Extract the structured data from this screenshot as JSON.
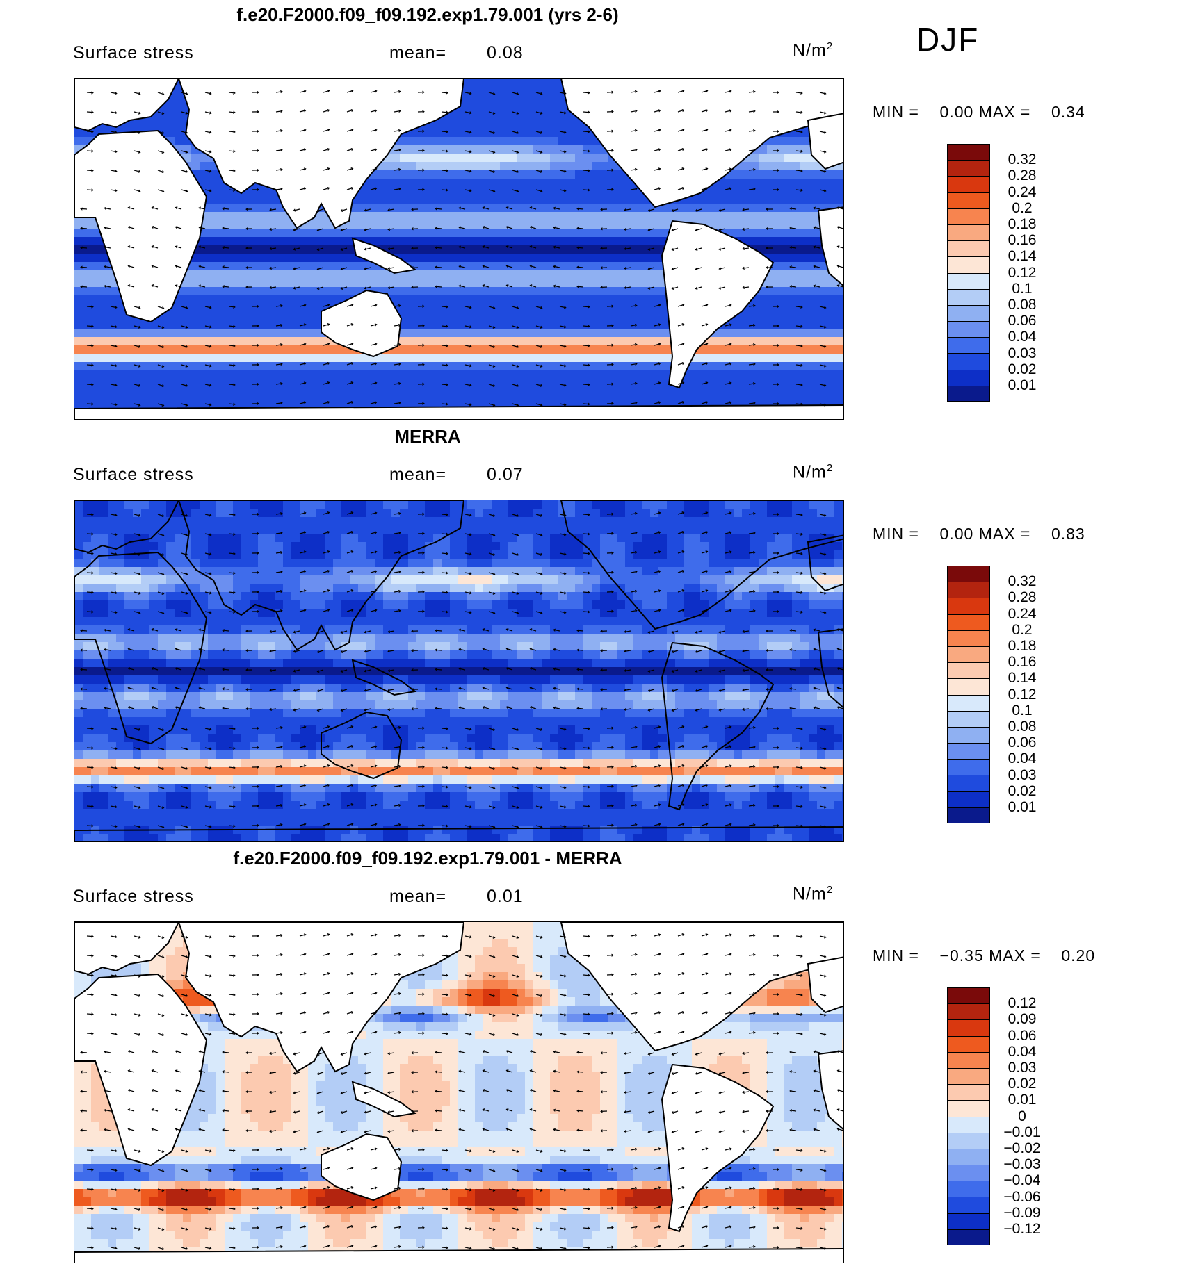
{
  "season": "DJF",
  "panels": [
    {
      "title": "f.e20.F2000.f09_f09.192.exp1.79.001 (yrs 2-6)",
      "variable": "Surface stress",
      "mean_label": "mean=",
      "mean_value": "0.08",
      "units_base": "N/m",
      "units_exp": "2",
      "min_label": "MIN =",
      "min_value": "0.00",
      "max_label": "MAX =",
      "max_value": "0.34",
      "colorbar": {
        "labels": [
          "0.32",
          "0.28",
          "0.24",
          "0.2",
          "0.18",
          "0.16",
          "0.14",
          "0.12",
          "0.1",
          "0.08",
          "0.06",
          "0.04",
          "0.03",
          "0.02",
          "0.01"
        ],
        "colors": [
          "#7a0a0a",
          "#b3240f",
          "#d9380f",
          "#ee5a1f",
          "#f7844f",
          "#f9a980",
          "#fccab0",
          "#fde6d6",
          "#d8e9fb",
          "#b3cdf6",
          "#8fb0f2",
          "#6b8ff0",
          "#3f6ceb",
          "#1f4bde",
          "#0d2fc7",
          "#0a1a8c"
        ]
      },
      "field": "model"
    },
    {
      "title": "MERRA",
      "variable": "Surface stress",
      "mean_label": "mean=",
      "mean_value": "0.07",
      "units_base": "N/m",
      "units_exp": "2",
      "min_label": "MIN =",
      "min_value": "0.00",
      "max_label": "MAX =",
      "max_value": "0.83",
      "colorbar": {
        "labels": [
          "0.32",
          "0.28",
          "0.24",
          "0.2",
          "0.18",
          "0.16",
          "0.14",
          "0.12",
          "0.1",
          "0.08",
          "0.06",
          "0.04",
          "0.03",
          "0.02",
          "0.01"
        ],
        "colors": [
          "#7a0a0a",
          "#b3240f",
          "#d9380f",
          "#ee5a1f",
          "#f7844f",
          "#f9a980",
          "#fccab0",
          "#fde6d6",
          "#d8e9fb",
          "#b3cdf6",
          "#8fb0f2",
          "#6b8ff0",
          "#3f6ceb",
          "#1f4bde",
          "#0d2fc7",
          "#0a1a8c"
        ]
      },
      "field": "obs"
    },
    {
      "title": "f.e20.F2000.f09_f09.192.exp1.79.001 - MERRA",
      "variable": "Surface stress",
      "mean_label": "mean=",
      "mean_value": "0.01",
      "units_base": "N/m",
      "units_exp": "2",
      "min_label": "MIN =",
      "min_value": "−0.35",
      "max_label": "MAX =",
      "max_value": "0.20",
      "colorbar": {
        "labels": [
          "0.12",
          "0.09",
          "0.06",
          "0.04",
          "0.03",
          "0.02",
          "0.01",
          "0",
          "−0.01",
          "−0.02",
          "−0.03",
          "−0.04",
          "−0.06",
          "−0.09",
          "−0.12"
        ],
        "colors": [
          "#7a0a0a",
          "#b3240f",
          "#d9380f",
          "#ee5a1f",
          "#f7844f",
          "#f9a980",
          "#fccab0",
          "#fde6d6",
          "#d8e9fb",
          "#b3cdf6",
          "#8fb0f2",
          "#6b8ff0",
          "#3f6ceb",
          "#1f4bde",
          "#0d2fc7",
          "#0a1a8c"
        ]
      },
      "field": "diff"
    }
  ]
}
